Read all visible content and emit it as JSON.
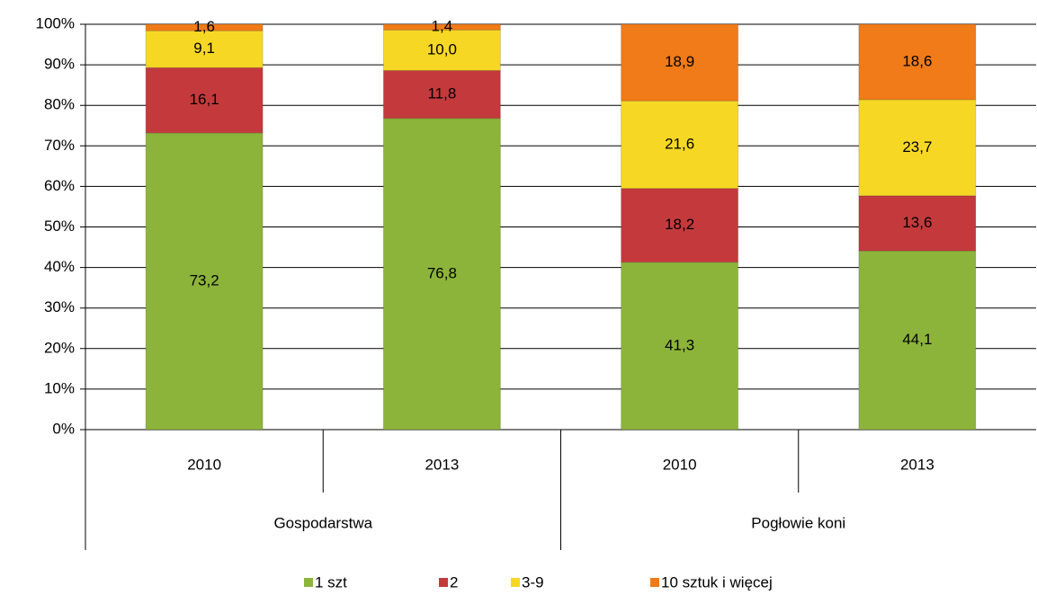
{
  "chart_data": {
    "type": "stacked_bar",
    "categories": [
      "2010",
      "2013",
      "2010",
      "2013"
    ],
    "groups": [
      "Gospodarstwa",
      "Pogłowie koni"
    ],
    "series": [
      {
        "name": "1 szt",
        "color": "#8db43a",
        "values": [
          73.2,
          76.8,
          41.3,
          44.1
        ],
        "value_labels": [
          "73,2",
          "76,8",
          "41,3",
          "44,1"
        ]
      },
      {
        "name": "2",
        "color": "#c43a3c",
        "values": [
          16.1,
          11.8,
          18.2,
          13.6
        ],
        "value_labels": [
          "16,1",
          "11,8",
          "18,2",
          "13,6"
        ]
      },
      {
        "name": "3-9",
        "color": "#f6d824",
        "values": [
          9.1,
          10.0,
          21.6,
          23.7
        ],
        "value_labels": [
          "9,1",
          "10,0",
          "21,6",
          "23,7"
        ]
      },
      {
        "name": "10 sztuk i więcej",
        "color": "#f07b18",
        "values": [
          1.6,
          1.4,
          18.9,
          18.6
        ],
        "value_labels": [
          "1,6",
          "1,4",
          "18,9",
          "18,6"
        ]
      }
    ],
    "ylim": [
      0,
      100
    ],
    "yticks": [
      {
        "value": 0,
        "label": "0%"
      },
      {
        "value": 10,
        "label": "10%"
      },
      {
        "value": 20,
        "label": "20%"
      },
      {
        "value": 30,
        "label": "30%"
      },
      {
        "value": 40,
        "label": "40%"
      },
      {
        "value": 50,
        "label": "50%"
      },
      {
        "value": 60,
        "label": "60%"
      },
      {
        "value": 70,
        "label": "70%"
      },
      {
        "value": 80,
        "label": "80%"
      },
      {
        "value": 90,
        "label": "90%"
      },
      {
        "value": 100,
        "label": "100%"
      }
    ],
    "grid": true,
    "legend": "bottom"
  }
}
